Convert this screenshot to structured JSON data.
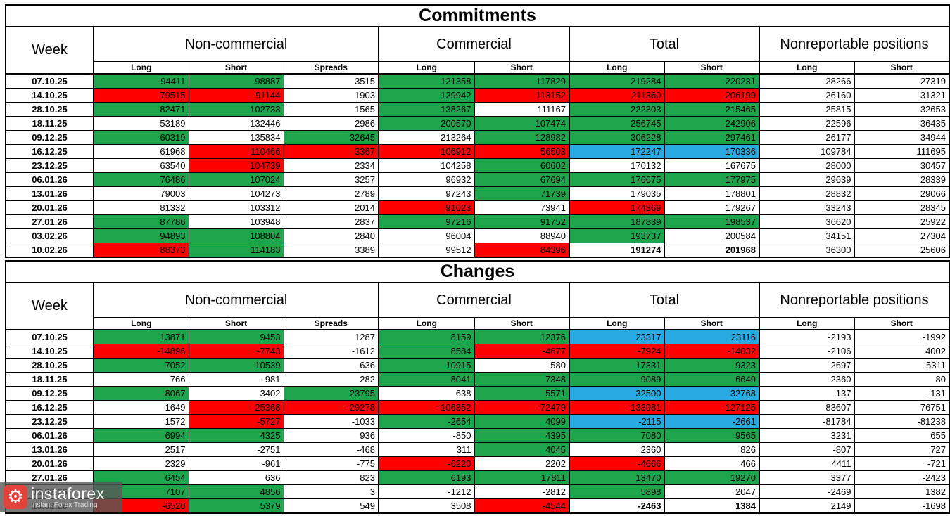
{
  "colors": {
    "green": "#1EA54B",
    "red": "#FF0000",
    "blue": "#29ABE2",
    "white": "#FFFFFF"
  },
  "watermark": {
    "brand": "instaforex",
    "subtitle": "Instant Forex Trading",
    "icon": "gear-icon",
    "icon_bg": "#E2443C"
  },
  "chart_data": [
    {
      "type": "table",
      "name": "commitments",
      "title": "Commitments",
      "corner_label": "Week",
      "column_groups": [
        {
          "label": "Non-commercial",
          "subcols": [
            "Long",
            "Short",
            "Spreads"
          ]
        },
        {
          "label": "Commercial",
          "subcols": [
            "Long",
            "Short"
          ]
        },
        {
          "label": "Total",
          "subcols": [
            "Long",
            "Short"
          ]
        },
        {
          "label": "Nonreportable positions",
          "subcols": [
            "Long",
            "Short"
          ]
        }
      ],
      "rows": [
        {
          "week": "07.10.25",
          "values": [
            94411,
            98887,
            3515,
            121358,
            117829,
            219284,
            220231,
            28266,
            27319
          ],
          "fills": [
            "green",
            "green",
            "white",
            "green",
            "green",
            "green",
            "green",
            "white",
            "white"
          ],
          "bold": []
        },
        {
          "week": "14.10.25",
          "values": [
            79515,
            91144,
            1903,
            129942,
            113152,
            211360,
            206199,
            26160,
            31321
          ],
          "fills": [
            "red",
            "red",
            "white",
            "green",
            "red",
            "red",
            "red",
            "white",
            "white"
          ],
          "bold": []
        },
        {
          "week": "28.10.25",
          "values": [
            82471,
            102733,
            1565,
            138267,
            111167,
            222303,
            215465,
            25815,
            32653
          ],
          "fills": [
            "green",
            "green",
            "white",
            "green",
            "white",
            "green",
            "green",
            "white",
            "white"
          ],
          "bold": []
        },
        {
          "week": "18.11.25",
          "values": [
            53189,
            132446,
            2986,
            200570,
            107474,
            256745,
            242906,
            22596,
            36435
          ],
          "fills": [
            "white",
            "white",
            "white",
            "green",
            "green",
            "green",
            "green",
            "white",
            "white"
          ],
          "bold": []
        },
        {
          "week": "09.12.25",
          "values": [
            60319,
            135834,
            32645,
            213264,
            128982,
            306228,
            297461,
            26177,
            34944
          ],
          "fills": [
            "green",
            "white",
            "green",
            "white",
            "green",
            "green",
            "green",
            "white",
            "white"
          ],
          "bold": []
        },
        {
          "week": "16.12.25",
          "values": [
            61968,
            110466,
            3367,
            106912,
            56503,
            172247,
            170336,
            109784,
            111695
          ],
          "fills": [
            "white",
            "red",
            "red",
            "red",
            "red",
            "blue",
            "blue",
            "white",
            "white"
          ],
          "bold": []
        },
        {
          "week": "23.12.25",
          "values": [
            63540,
            104739,
            2334,
            104258,
            60602,
            170132,
            167675,
            28000,
            30457
          ],
          "fills": [
            "white",
            "red",
            "white",
            "white",
            "green",
            "white",
            "white",
            "white",
            "white"
          ],
          "bold": []
        },
        {
          "week": "06.01.26",
          "values": [
            76486,
            107024,
            3257,
            96932,
            67694,
            176675,
            177975,
            29639,
            28339
          ],
          "fills": [
            "green",
            "green",
            "white",
            "white",
            "green",
            "green",
            "green",
            "white",
            "white"
          ],
          "bold": []
        },
        {
          "week": "13.01.26",
          "values": [
            79003,
            104273,
            2789,
            97243,
            71739,
            179035,
            178801,
            28832,
            29066
          ],
          "fills": [
            "white",
            "white",
            "white",
            "white",
            "green",
            "white",
            "white",
            "white",
            "white"
          ],
          "bold": []
        },
        {
          "week": "20.01.26",
          "values": [
            81332,
            103312,
            2014,
            91023,
            73941,
            174369,
            179267,
            33243,
            28345
          ],
          "fills": [
            "white",
            "white",
            "white",
            "red",
            "white",
            "red",
            "white",
            "white",
            "white"
          ],
          "bold": []
        },
        {
          "week": "27.01.26",
          "values": [
            87786,
            103948,
            2837,
            97216,
            91752,
            187839,
            198537,
            36620,
            25922
          ],
          "fills": [
            "green",
            "white",
            "white",
            "green",
            "green",
            "green",
            "green",
            "white",
            "white"
          ],
          "bold": []
        },
        {
          "week": "03.02.26",
          "values": [
            94893,
            108804,
            2840,
            96004,
            88940,
            193737,
            200584,
            34151,
            27304
          ],
          "fills": [
            "green",
            "green",
            "white",
            "white",
            "white",
            "green",
            "white",
            "white",
            "white"
          ],
          "bold": []
        },
        {
          "week": "10.02.26",
          "values": [
            88373,
            114183,
            3389,
            99512,
            84396,
            191274,
            201968,
            36300,
            25606
          ],
          "fills": [
            "red",
            "green",
            "white",
            "white",
            "red",
            "white",
            "white",
            "white",
            "white"
          ],
          "bold": [
            5,
            6
          ]
        }
      ]
    },
    {
      "type": "table",
      "name": "changes",
      "title": "Changes",
      "corner_label": "Week",
      "column_groups": [
        {
          "label": "Non-commercial",
          "subcols": [
            "Long",
            "Short",
            "Spreads"
          ]
        },
        {
          "label": "Commercial",
          "subcols": [
            "Long",
            "Short"
          ]
        },
        {
          "label": "Total",
          "subcols": [
            "Long",
            "Short"
          ]
        },
        {
          "label": "Nonreportable positions",
          "subcols": [
            "Long",
            "Short"
          ]
        }
      ],
      "rows": [
        {
          "week": "07.10.25",
          "values": [
            13871,
            9453,
            1287,
            8159,
            12376,
            23317,
            23116,
            -2193,
            -1992
          ],
          "fills": [
            "green",
            "green",
            "white",
            "green",
            "green",
            "blue",
            "blue",
            "white",
            "white"
          ],
          "bold": []
        },
        {
          "week": "14.10.25",
          "values": [
            -14896,
            -7743,
            -1612,
            8584,
            -4677,
            -7924,
            -14032,
            -2106,
            4002
          ],
          "fills": [
            "red",
            "red",
            "white",
            "green",
            "red",
            "red",
            "red",
            "white",
            "white"
          ],
          "bold": []
        },
        {
          "week": "28.10.25",
          "values": [
            7052,
            10539,
            -636,
            10915,
            -580,
            17331,
            9323,
            -2697,
            5311
          ],
          "fills": [
            "green",
            "green",
            "white",
            "green",
            "white",
            "green",
            "green",
            "white",
            "white"
          ],
          "bold": []
        },
        {
          "week": "18.11.25",
          "values": [
            766,
            -981,
            282,
            8041,
            7348,
            9089,
            6649,
            -2360,
            80
          ],
          "fills": [
            "white",
            "white",
            "white",
            "green",
            "green",
            "green",
            "green",
            "white",
            "white"
          ],
          "bold": []
        },
        {
          "week": "09.12.25",
          "values": [
            8067,
            3402,
            23795,
            638,
            5571,
            32500,
            32768,
            137,
            -131
          ],
          "fills": [
            "green",
            "white",
            "green",
            "white",
            "green",
            "blue",
            "blue",
            "white",
            "white"
          ],
          "bold": []
        },
        {
          "week": "16.12.25",
          "values": [
            1649,
            -25368,
            -29278,
            -106352,
            -72479,
            -133981,
            -127125,
            83607,
            76751
          ],
          "fills": [
            "white",
            "red",
            "red",
            "red",
            "red",
            "red",
            "red",
            "white",
            "white"
          ],
          "bold": []
        },
        {
          "week": "23.12.25",
          "values": [
            1572,
            -5727,
            -1033,
            -2654,
            4099,
            -2115,
            -2661,
            -81784,
            -81238
          ],
          "fills": [
            "white",
            "red",
            "white",
            "green",
            "green",
            "blue",
            "blue",
            "white",
            "white"
          ],
          "bold": []
        },
        {
          "week": "06.01.26",
          "values": [
            6994,
            4325,
            936,
            -850,
            4395,
            7080,
            9565,
            3231,
            655
          ],
          "fills": [
            "green",
            "green",
            "white",
            "white",
            "green",
            "green",
            "green",
            "white",
            "white"
          ],
          "bold": []
        },
        {
          "week": "13.01.26",
          "values": [
            2517,
            -2751,
            -468,
            311,
            4045,
            2360,
            826,
            -807,
            727
          ],
          "fills": [
            "white",
            "white",
            "white",
            "white",
            "green",
            "white",
            "white",
            "white",
            "white"
          ],
          "bold": []
        },
        {
          "week": "20.01.26",
          "values": [
            2329,
            -961,
            -775,
            -6220,
            2202,
            -4666,
            466,
            4411,
            -721
          ],
          "fills": [
            "white",
            "white",
            "white",
            "red",
            "white",
            "red",
            "white",
            "white",
            "white"
          ],
          "bold": []
        },
        {
          "week": "27.01.26",
          "values": [
            6454,
            636,
            823,
            6193,
            17811,
            13470,
            19270,
            3377,
            -2423
          ],
          "fills": [
            "green",
            "white",
            "white",
            "green",
            "green",
            "green",
            "green",
            "white",
            "white"
          ],
          "bold": []
        },
        {
          "week": "03.02.26",
          "values": [
            7107,
            4856,
            3,
            -1212,
            -2812,
            5898,
            2047,
            -2469,
            1382
          ],
          "fills": [
            "green",
            "green",
            "white",
            "white",
            "white",
            "green",
            "white",
            "white",
            "white"
          ],
          "bold": []
        },
        {
          "week": "10.02.26",
          "values": [
            -6520,
            5379,
            549,
            3508,
            -4544,
            -2463,
            1384,
            2149,
            -1698
          ],
          "fills": [
            "red",
            "green",
            "white",
            "white",
            "red",
            "white",
            "white",
            "white",
            "white"
          ],
          "bold": [
            5,
            6
          ]
        }
      ]
    }
  ]
}
